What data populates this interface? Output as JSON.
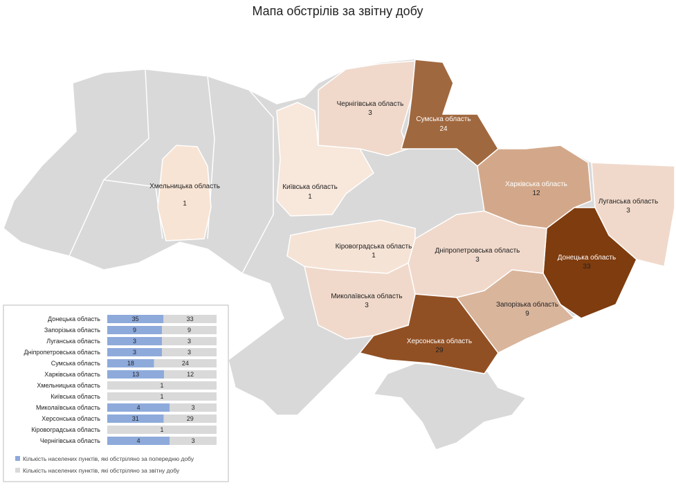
{
  "title": "Мапа обстрілів за звітну добу",
  "regions": [
    {
      "name": "Хмельницька область",
      "value": 1,
      "color": "#f8e4d4"
    },
    {
      "name": "Київська область",
      "value": 1,
      "color": "#f8e7db"
    },
    {
      "name": "Чернігівська область",
      "value": 3,
      "color": "#f0d9cb"
    },
    {
      "name": "Сумська область",
      "value": 24,
      "color": "#a0683f"
    },
    {
      "name": "Харківська область",
      "value": 12,
      "color": "#d3a88a"
    },
    {
      "name": "Луганська область",
      "value": 3,
      "color": "#f0d9cb"
    },
    {
      "name": "Донецька область",
      "value": 33,
      "color": "#7f3c0e"
    },
    {
      "name": "Дніпропетровська область",
      "value": 3,
      "color": "#f0d9cb"
    },
    {
      "name": "Запорізька область",
      "value": 9,
      "color": "#d9b59c"
    },
    {
      "name": "Херсонська область",
      "value": 29,
      "color": "#915024"
    },
    {
      "name": "Миколаївська область",
      "value": 3,
      "color": "#f0d9cb"
    },
    {
      "name": "Кіровоградська область",
      "value": 1,
      "color": "#f5e3d6"
    }
  ],
  "chart_data": {
    "type": "bar",
    "categories": [
      "Донецька область",
      "Запорізька область",
      "Луганська область",
      "Дніпропетровська область",
      "Сумська область",
      "Харківська область",
      "Хмельницька область",
      "Київська область",
      "Миколаївська область",
      "Херсонська область",
      "Кіровоградська область",
      "Чернігівська область"
    ],
    "series": [
      {
        "name": "Кількість населених пунктів, які обстріляно за попередню добу",
        "color": "#8eaadb",
        "values": [
          35,
          9,
          3,
          3,
          18,
          13,
          null,
          null,
          4,
          31,
          null,
          4
        ]
      },
      {
        "name": "Кількість населених пунктів, які обстріляно за звітну добу",
        "color": "#d9d9d9",
        "values": [
          33,
          9,
          3,
          3,
          24,
          12,
          1,
          1,
          3,
          29,
          1,
          3
        ]
      }
    ]
  }
}
